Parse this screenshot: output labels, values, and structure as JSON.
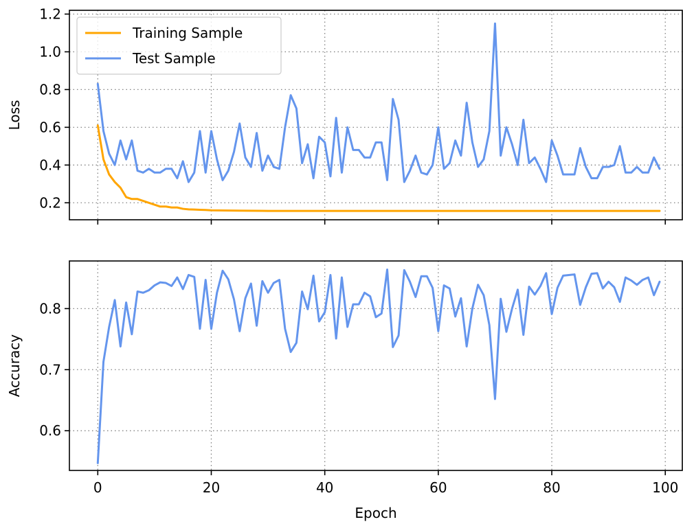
{
  "chart_data": [
    {
      "type": "line",
      "ylabel": "Loss",
      "xlabel": "",
      "xlim": [
        -5,
        103
      ],
      "ylim": [
        0.11,
        1.22
      ],
      "xticks": [
        0,
        20,
        40,
        60,
        80,
        100
      ],
      "yticks": [
        0.2,
        0.4,
        0.6,
        0.8,
        1.0,
        1.2
      ],
      "ytick_labels": [
        "0.2",
        "0.4",
        "0.6",
        "0.8",
        "1.0",
        "1.2"
      ],
      "grid": true,
      "legend": "top-left",
      "series": [
        {
          "name": "Training Sample",
          "color": "#FFA500",
          "x": [
            0,
            1,
            2,
            3,
            4,
            5,
            6,
            7,
            8,
            9,
            10,
            11,
            12,
            13,
            14,
            15,
            16,
            17,
            18,
            19,
            20,
            25,
            30,
            40,
            60,
            80,
            99
          ],
          "values": [
            0.61,
            0.43,
            0.35,
            0.31,
            0.28,
            0.23,
            0.22,
            0.22,
            0.21,
            0.2,
            0.19,
            0.18,
            0.18,
            0.175,
            0.175,
            0.168,
            0.165,
            0.164,
            0.163,
            0.162,
            0.16,
            0.158,
            0.157,
            0.157,
            0.157,
            0.157,
            0.157
          ]
        },
        {
          "name": "Test Sample",
          "color": "#6495ED",
          "x": [
            0,
            1,
            2,
            3,
            4,
            5,
            6,
            7,
            8,
            9,
            10,
            11,
            12,
            13,
            14,
            15,
            16,
            17,
            18,
            19,
            20,
            21,
            22,
            23,
            24,
            25,
            26,
            27,
            28,
            29,
            30,
            31,
            32,
            33,
            34,
            35,
            36,
            37,
            38,
            39,
            40,
            41,
            42,
            43,
            44,
            45,
            46,
            47,
            48,
            49,
            50,
            51,
            52,
            53,
            54,
            55,
            56,
            57,
            58,
            59,
            60,
            61,
            62,
            63,
            64,
            65,
            66,
            67,
            68,
            69,
            70,
            71,
            72,
            73,
            74,
            75,
            76,
            77,
            78,
            79,
            80,
            81,
            82,
            83,
            84,
            85,
            86,
            87,
            88,
            89,
            90,
            91,
            92,
            93,
            94,
            95,
            96,
            97,
            98,
            99
          ],
          "values": [
            0.83,
            0.58,
            0.46,
            0.4,
            0.53,
            0.43,
            0.53,
            0.37,
            0.36,
            0.38,
            0.36,
            0.36,
            0.38,
            0.38,
            0.33,
            0.42,
            0.31,
            0.36,
            0.58,
            0.36,
            0.58,
            0.43,
            0.32,
            0.37,
            0.47,
            0.62,
            0.44,
            0.39,
            0.57,
            0.37,
            0.45,
            0.39,
            0.38,
            0.6,
            0.77,
            0.7,
            0.41,
            0.51,
            0.33,
            0.55,
            0.52,
            0.34,
            0.65,
            0.36,
            0.6,
            0.48,
            0.48,
            0.44,
            0.44,
            0.52,
            0.52,
            0.32,
            0.75,
            0.64,
            0.31,
            0.37,
            0.45,
            0.36,
            0.35,
            0.4,
            0.6,
            0.38,
            0.41,
            0.53,
            0.45,
            0.73,
            0.52,
            0.39,
            0.43,
            0.58,
            1.15,
            0.45,
            0.6,
            0.51,
            0.4,
            0.64,
            0.41,
            0.44,
            0.38,
            0.31,
            0.53,
            0.45,
            0.35,
            0.35,
            0.35,
            0.49,
            0.39,
            0.33,
            0.33,
            0.39,
            0.39,
            0.4,
            0.5,
            0.36,
            0.36,
            0.39,
            0.36,
            0.36,
            0.44,
            0.38
          ]
        }
      ]
    },
    {
      "type": "line",
      "ylabel": "Accuracy",
      "xlabel": "Epoch",
      "xlim": [
        -5,
        103
      ],
      "ylim": [
        0.535,
        0.878
      ],
      "xticks": [
        0,
        20,
        40,
        60,
        80,
        100
      ],
      "yticks": [
        0.6,
        0.7,
        0.8
      ],
      "ytick_labels": [
        "0.6",
        "0.7",
        "0.8"
      ],
      "grid": true,
      "series": [
        {
          "color": "#6495ED",
          "x": [
            0,
            1,
            2,
            3,
            4,
            5,
            6,
            7,
            8,
            9,
            10,
            11,
            12,
            13,
            14,
            15,
            16,
            17,
            18,
            19,
            20,
            21,
            22,
            23,
            24,
            25,
            26,
            27,
            28,
            29,
            30,
            31,
            32,
            33,
            34,
            35,
            36,
            37,
            38,
            39,
            40,
            41,
            42,
            43,
            44,
            45,
            46,
            47,
            48,
            49,
            50,
            51,
            52,
            53,
            54,
            55,
            56,
            57,
            58,
            59,
            60,
            61,
            62,
            63,
            64,
            65,
            66,
            67,
            68,
            69,
            70,
            71,
            72,
            73,
            74,
            75,
            76,
            77,
            78,
            79,
            80,
            81,
            82,
            83,
            84,
            85,
            86,
            87,
            88,
            89,
            90,
            91,
            92,
            93,
            94,
            95,
            96,
            97,
            98,
            99
          ],
          "values": [
            0.547,
            0.713,
            0.77,
            0.814,
            0.738,
            0.81,
            0.758,
            0.828,
            0.826,
            0.83,
            0.838,
            0.843,
            0.842,
            0.837,
            0.851,
            0.832,
            0.855,
            0.852,
            0.767,
            0.847,
            0.767,
            0.826,
            0.862,
            0.848,
            0.815,
            0.763,
            0.817,
            0.841,
            0.772,
            0.845,
            0.826,
            0.842,
            0.847,
            0.767,
            0.729,
            0.744,
            0.828,
            0.799,
            0.854,
            0.779,
            0.794,
            0.855,
            0.751,
            0.851,
            0.77,
            0.807,
            0.807,
            0.826,
            0.82,
            0.786,
            0.792,
            0.864,
            0.737,
            0.756,
            0.863,
            0.844,
            0.819,
            0.853,
            0.853,
            0.834,
            0.763,
            0.838,
            0.833,
            0.787,
            0.817,
            0.738,
            0.8,
            0.839,
            0.822,
            0.773,
            0.652,
            0.816,
            0.762,
            0.8,
            0.831,
            0.757,
            0.836,
            0.823,
            0.837,
            0.858,
            0.791,
            0.834,
            0.854,
            0.855,
            0.856,
            0.806,
            0.835,
            0.857,
            0.858,
            0.833,
            0.844,
            0.835,
            0.811,
            0.851,
            0.846,
            0.839,
            0.847,
            0.851,
            0.822,
            0.844
          ]
        }
      ]
    }
  ]
}
